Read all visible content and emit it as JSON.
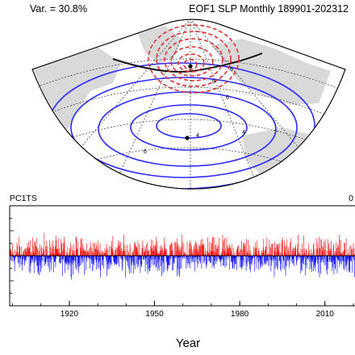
{
  "header": {
    "variance_label": "Var. = 30.8%",
    "map_title": "EOF1 SLP Monthly 189901-202312"
  },
  "map": {
    "positive_contour_color": "#2a2aff",
    "negative_contour_color": "#e03030",
    "zero_contour_color": "#111111",
    "land_color": "#d9d9d9",
    "contour_labels": [
      "6",
      "6",
      "6",
      "4",
      "4",
      "6"
    ]
  },
  "chart_data": {
    "type": "bar",
    "title": "PC1TS",
    "title_right": "0",
    "xlabel": "Year",
    "ylabel": "",
    "x_ticks": [
      1920,
      1950,
      1980,
      2010
    ],
    "xlim": [
      1899,
      2024
    ],
    "ylim": [
      -4,
      4
    ],
    "zero_line": 0,
    "positive_color": "#ff0000",
    "negative_color": "#0000ff",
    "monthly_range": {
      "start": "1899-01",
      "end": "2023-12"
    },
    "approx_positive_peak": 3.2,
    "approx_negative_peak": -3.6
  }
}
